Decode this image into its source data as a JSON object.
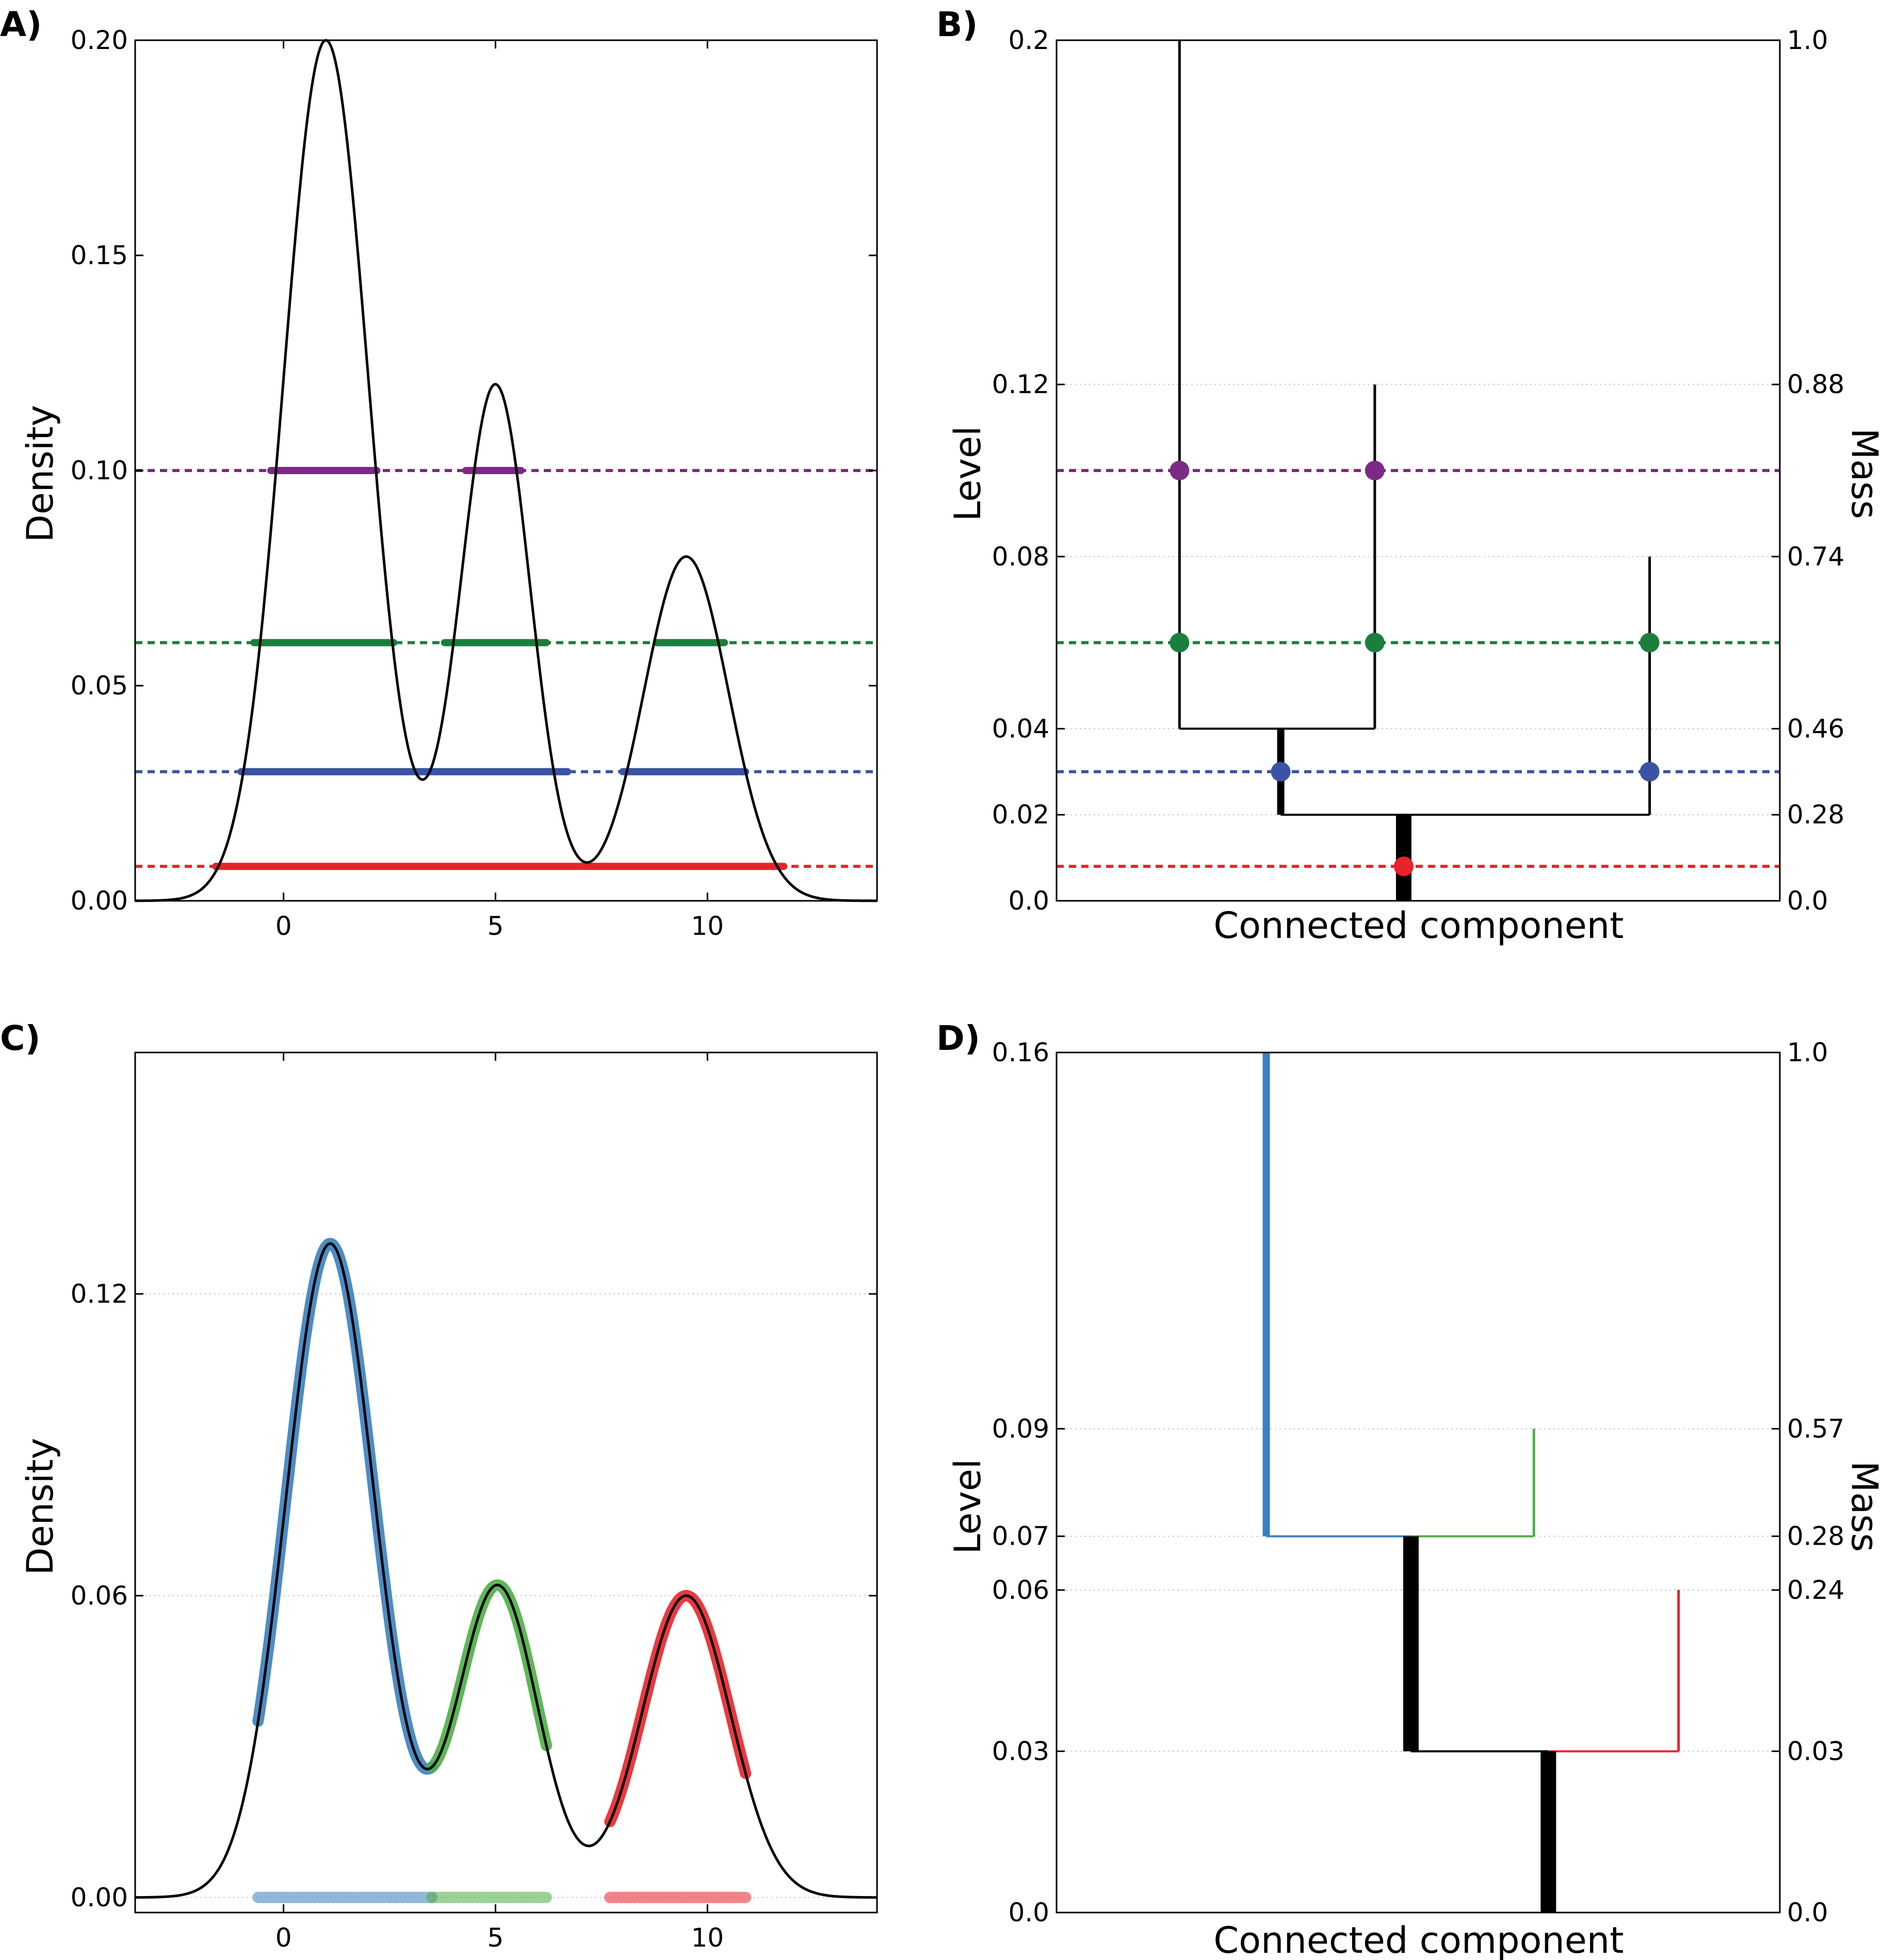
{
  "chart_data": [
    {
      "panel": "A",
      "panel_label": "A)",
      "type": "line",
      "ylabel": "Density",
      "xlim": [
        -3.5,
        14
      ],
      "ylim": [
        0,
        0.2
      ],
      "xticks": [
        0,
        5,
        10
      ],
      "xtick_labels": [
        "0",
        "5",
        "10"
      ],
      "yticks": [
        0.0,
        0.05,
        0.1,
        0.15,
        0.2
      ],
      "ytick_labels": [
        "0.00",
        "0.05",
        "0.10",
        "0.15",
        "0.20"
      ],
      "density_curve": {
        "components": [
          {
            "mean": 1.0,
            "sd": 1.0,
            "height": 0.2
          },
          {
            "mean": 5.0,
            "sd": 0.82,
            "height": 0.12
          },
          {
            "mean": 9.5,
            "sd": 1.0,
            "height": 0.08
          }
        ],
        "color": "#000000"
      },
      "levels": [
        {
          "level": 0.1,
          "color": "#7b2a85",
          "segments": [
            [
              -0.3,
              2.2
            ],
            [
              4.3,
              5.6
            ]
          ]
        },
        {
          "level": 0.06,
          "color": "#1a7f3c",
          "segments": [
            [
              -0.7,
              2.6
            ],
            [
              3.8,
              6.2
            ],
            [
              8.8,
              10.4
            ]
          ]
        },
        {
          "level": 0.03,
          "color": "#3a53a4",
          "segments": [
            [
              -1.0,
              6.7
            ],
            [
              8.0,
              10.9
            ]
          ]
        },
        {
          "level": 0.008,
          "color": "#e8232a",
          "segments": [
            [
              -1.6,
              11.8
            ]
          ]
        }
      ]
    },
    {
      "panel": "B",
      "panel_label": "B)",
      "type": "tree",
      "xlabel": "Connected component",
      "ylabel": "Level",
      "y2label": "Mass",
      "yticks": [
        0.0,
        0.02,
        0.04,
        0.08,
        0.12,
        0.2
      ],
      "ytick_labels": [
        "0.0",
        "0.02",
        "0.04",
        "0.08",
        "0.12",
        "0.2"
      ],
      "y2tick_labels": [
        "0.0",
        "0.28",
        "0.46",
        "0.74",
        "0.88",
        "1.0"
      ],
      "x_range": [
        0,
        1
      ],
      "level_breaks": [
        {
          "label": "0.0",
          "mass": "0.0"
        },
        {
          "label": "0.02",
          "mass": "0.28"
        },
        {
          "label": "0.04",
          "mass": "0.46"
        },
        {
          "label": "0.08",
          "mass": "0.74"
        },
        {
          "label": "0.12",
          "mass": "0.88"
        },
        {
          "label": "0.2",
          "mass": "1.0"
        }
      ],
      "branches": [
        {
          "name": "root",
          "x": 0.48,
          "from": 0,
          "to": 0.02,
          "width": "thick"
        },
        {
          "name": "node-a",
          "x": 0.31,
          "from": 0.02,
          "to": 0.04,
          "width": "medium"
        },
        {
          "name": "peak-1",
          "x": 0.17,
          "from": 0.04,
          "to": 0.2,
          "width": "thin"
        },
        {
          "name": "peak-2",
          "x": 0.44,
          "from": 0.04,
          "to": 0.12,
          "width": "thin"
        },
        {
          "name": "peak-3",
          "x": 0.82,
          "from": 0.02,
          "to": 0.08,
          "width": "thin"
        }
      ],
      "connectors": [
        {
          "level": 0.04,
          "x_from": 0.17,
          "x_to": 0.44
        },
        {
          "level": 0.02,
          "x_from": 0.31,
          "x_to": 0.82
        }
      ],
      "levels": [
        {
          "level": 0.1,
          "color": "#7b2a85",
          "points": [
            0.17,
            0.44
          ]
        },
        {
          "level": 0.06,
          "color": "#1a7f3c",
          "points": [
            0.17,
            0.44,
            0.82
          ]
        },
        {
          "level": 0.03,
          "color": "#3a53a4",
          "points": [
            0.31,
            0.82
          ]
        },
        {
          "level": 0.008,
          "color": "#e8232a",
          "points": [
            0.48
          ]
        }
      ]
    },
    {
      "panel": "C",
      "panel_label": "C)",
      "type": "line",
      "ylabel": "Density",
      "xlim": [
        -3.5,
        14
      ],
      "ylim": [
        -0.003,
        0.168
      ],
      "xticks": [
        0,
        5,
        10
      ],
      "xtick_labels": [
        "0",
        "5",
        "10"
      ],
      "yticks": [
        0.0,
        0.06,
        0.12
      ],
      "ytick_labels": [
        "0.00",
        "0.06",
        "0.12"
      ],
      "density_curve": {
        "components": [
          {
            "mean": 1.1,
            "sd": 1.05,
            "height": 0.13
          },
          {
            "mean": 5.05,
            "sd": 0.95,
            "height": 0.062
          },
          {
            "mean": 9.5,
            "sd": 1.05,
            "height": 0.06
          }
        ],
        "color": "#000000"
      },
      "clusters": [
        {
          "name": "cluster-1",
          "color": "#3a7fbf",
          "x_range": [
            -0.6,
            3.5
          ]
        },
        {
          "name": "cluster-2",
          "color": "#4caf44",
          "x_range": [
            3.5,
            6.2
          ]
        },
        {
          "name": "cluster-3",
          "color": "#e8232a",
          "x_range": [
            7.7,
            10.9
          ]
        }
      ]
    },
    {
      "panel": "D",
      "panel_label": "D)",
      "type": "tree",
      "xlabel": "Connected component",
      "ylabel": "Level",
      "y2label": "Mass",
      "yticks": [
        0.0,
        0.03,
        0.06,
        0.07,
        0.09,
        0.16
      ],
      "ytick_labels": [
        "0.0",
        "0.03",
        "0.06",
        "0.07",
        "0.09",
        "0.16"
      ],
      "y2tick_labels": [
        "0.0",
        "0.03",
        "0.24",
        "0.28",
        "0.57",
        "1.0"
      ],
      "x_range": [
        0,
        1
      ],
      "level_breaks": [
        {
          "label": "0.0",
          "mass": "0.0"
        },
        {
          "label": "0.03",
          "mass": "0.03"
        },
        {
          "label": "0.06",
          "mass": "0.24"
        },
        {
          "label": "0.07",
          "mass": "0.28"
        },
        {
          "label": "0.09",
          "mass": "0.57"
        },
        {
          "label": "0.16",
          "mass": "1.0"
        }
      ],
      "branches": [
        {
          "name": "root",
          "x": 0.68,
          "from": 0,
          "to": 0.03,
          "width": "thick",
          "color": "#000000"
        },
        {
          "name": "node-a",
          "x": 0.49,
          "from": 0.03,
          "to": 0.07,
          "width": "thick",
          "color": "#000000"
        },
        {
          "name": "leaf-blue",
          "x": 0.29,
          "from": 0.07,
          "to": 0.16,
          "width": "medium",
          "color": "#3a7fbf"
        },
        {
          "name": "leaf-green",
          "x": 0.66,
          "from": 0.07,
          "to": 0.09,
          "width": "thin",
          "color": "#4caf44"
        },
        {
          "name": "leaf-red",
          "x": 0.86,
          "from": 0.03,
          "to": 0.06,
          "width": "thin",
          "color": "#e8232a"
        }
      ],
      "connectors": [
        {
          "level": 0.07,
          "x_from": 0.29,
          "x_to": 0.49,
          "color": "#3a7fbf"
        },
        {
          "level": 0.07,
          "x_from": 0.49,
          "x_to": 0.66,
          "color": "#4caf44"
        },
        {
          "level": 0.03,
          "x_from": 0.49,
          "x_to": 0.68,
          "color": "#000000"
        },
        {
          "level": 0.03,
          "x_from": 0.68,
          "x_to": 0.86,
          "color": "#e8232a"
        }
      ]
    }
  ]
}
